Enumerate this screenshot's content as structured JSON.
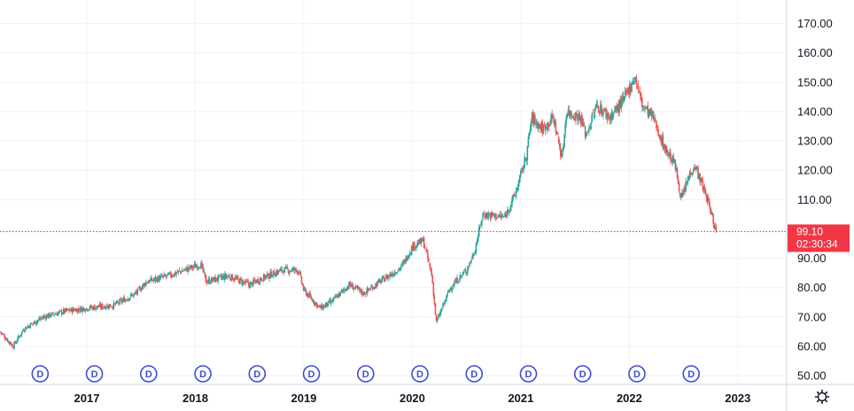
{
  "colors": {
    "up": "#26a69a",
    "down": "#ef5350",
    "grid": "#f0f3fa",
    "axis_line": "#d1d4dc",
    "price_line": "#e91e25",
    "price_label_bg": "#f23645",
    "dividend_marker": "#3d4dd6",
    "text": "#131722"
  },
  "icons": {
    "settings": "gear-icon",
    "dividend": "dividend-marker-icon"
  },
  "chart_data": {
    "type": "candlestick",
    "y_axis": {
      "position": "right",
      "ylim": [
        47,
        175
      ],
      "ticks": [
        "50.00",
        "60.00",
        "70.00",
        "80.00",
        "90.00",
        "110.00",
        "120.00",
        "130.00",
        "140.00",
        "150.00",
        "160.00",
        "170.00"
      ]
    },
    "x_axis": {
      "ticks": [
        "2017",
        "2018",
        "2019",
        "2020",
        "2021",
        "2022",
        "2023"
      ],
      "xlim": [
        2016.2,
        2023.45
      ]
    },
    "current_price": {
      "value": "99.10",
      "countdown": "02:30:34",
      "level": 99.1
    },
    "dividend_marker_label": "D",
    "dividends_at": [
      2016.57,
      2017.07,
      2017.57,
      2018.07,
      2018.57,
      2019.07,
      2019.57,
      2020.07,
      2020.57,
      2021.07,
      2021.57,
      2022.07,
      2022.57
    ],
    "series_points": [
      [
        2016.2,
        65
      ],
      [
        2016.32,
        60
      ],
      [
        2016.42,
        66
      ],
      [
        2016.6,
        70
      ],
      [
        2016.8,
        72
      ],
      [
        2017.0,
        73
      ],
      [
        2017.25,
        74
      ],
      [
        2017.45,
        78
      ],
      [
        2017.55,
        82
      ],
      [
        2017.75,
        84
      ],
      [
        2017.9,
        86
      ],
      [
        2018.05,
        88
      ],
      [
        2018.1,
        82
      ],
      [
        2018.3,
        84
      ],
      [
        2018.5,
        81
      ],
      [
        2018.6,
        83
      ],
      [
        2018.8,
        86
      ],
      [
        2018.95,
        86
      ],
      [
        2019.0,
        79
      ],
      [
        2019.15,
        73
      ],
      [
        2019.25,
        75
      ],
      [
        2019.42,
        81
      ],
      [
        2019.55,
        78
      ],
      [
        2019.7,
        82
      ],
      [
        2019.9,
        87
      ],
      [
        2020.0,
        94
      ],
      [
        2020.1,
        96
      ],
      [
        2020.18,
        84
      ],
      [
        2020.22,
        68
      ],
      [
        2020.35,
        80
      ],
      [
        2020.5,
        86
      ],
      [
        2020.57,
        92
      ],
      [
        2020.65,
        105
      ],
      [
        2020.85,
        104
      ],
      [
        2020.95,
        112
      ],
      [
        2021.05,
        125
      ],
      [
        2021.1,
        138
      ],
      [
        2021.2,
        134
      ],
      [
        2021.3,
        138
      ],
      [
        2021.38,
        124
      ],
      [
        2021.42,
        140
      ],
      [
        2021.55,
        138
      ],
      [
        2021.6,
        132
      ],
      [
        2021.7,
        142
      ],
      [
        2021.82,
        138
      ],
      [
        2021.95,
        144
      ],
      [
        2022.05,
        152
      ],
      [
        2022.12,
        142
      ],
      [
        2022.22,
        138
      ],
      [
        2022.32,
        128
      ],
      [
        2022.42,
        122
      ],
      [
        2022.48,
        110
      ],
      [
        2022.55,
        118
      ],
      [
        2022.6,
        122
      ],
      [
        2022.72,
        110
      ],
      [
        2022.8,
        99
      ]
    ]
  }
}
